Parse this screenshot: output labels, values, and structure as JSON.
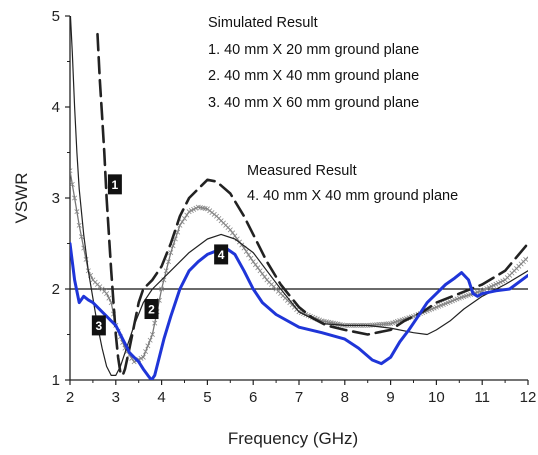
{
  "chart_data": {
    "type": "line",
    "xlabel": "Frequency (GHz)",
    "ylabel": "VSWR",
    "xlim": [
      2,
      12
    ],
    "ylim": [
      1,
      5
    ],
    "x_ticks": [
      "2",
      "3",
      "4",
      "5",
      "6",
      "7",
      "8",
      "9",
      "10",
      "11",
      "12"
    ],
    "y_ticks": [
      "1",
      "2",
      "3",
      "4",
      "5"
    ],
    "reference_line": {
      "y": 2
    },
    "annotations": {
      "simulated_title": "Simulated Result",
      "simulated_items": [
        "1. 40 mm X 20 mm ground plane",
        "2. 40 mm X 40 mm ground plane",
        "3. 40 mm X 60 mm ground plane"
      ],
      "measured_title": "Measured Result",
      "measured_items": [
        "4. 40 mm X 40 mm ground plane"
      ]
    },
    "series": [
      {
        "label": "1",
        "color": "#222222",
        "style": "dashed-long",
        "label_pos": [
          2.98,
          3.15
        ],
        "points": [
          [
            2.6,
            4.8
          ],
          [
            2.65,
            4.3
          ],
          [
            2.7,
            3.9
          ],
          [
            2.75,
            3.5
          ],
          [
            2.8,
            3.0
          ],
          [
            2.85,
            2.6
          ],
          [
            2.9,
            2.2
          ],
          [
            2.95,
            1.85
          ],
          [
            3.0,
            1.5
          ],
          [
            3.05,
            1.25
          ],
          [
            3.1,
            1.08
          ],
          [
            3.15,
            1.05
          ],
          [
            3.2,
            1.12
          ],
          [
            3.3,
            1.35
          ],
          [
            3.4,
            1.6
          ],
          [
            3.5,
            1.85
          ],
          [
            3.6,
            2.0
          ],
          [
            3.8,
            2.1
          ],
          [
            4.0,
            2.25
          ],
          [
            4.2,
            2.5
          ],
          [
            4.4,
            2.8
          ],
          [
            4.6,
            3.0
          ],
          [
            4.8,
            3.1
          ],
          [
            5.0,
            3.2
          ],
          [
            5.2,
            3.18
          ],
          [
            5.5,
            3.05
          ],
          [
            5.8,
            2.8
          ],
          [
            6.0,
            2.6
          ],
          [
            6.3,
            2.3
          ],
          [
            6.6,
            2.05
          ],
          [
            7.0,
            1.8
          ],
          [
            7.3,
            1.68
          ],
          [
            7.6,
            1.6
          ],
          [
            8.0,
            1.55
          ],
          [
            8.5,
            1.5
          ],
          [
            9.0,
            1.55
          ],
          [
            9.3,
            1.65
          ],
          [
            9.7,
            1.75
          ],
          [
            10.0,
            1.85
          ],
          [
            10.5,
            1.95
          ],
          [
            11.0,
            2.05
          ],
          [
            11.5,
            2.2
          ],
          [
            12.0,
            2.5
          ]
        ]
      },
      {
        "label": "2",
        "color": "#777777",
        "style": "cross-marker",
        "label_pos": [
          3.78,
          1.78
        ],
        "points": [
          [
            2.0,
            3.3
          ],
          [
            2.1,
            3.0
          ],
          [
            2.2,
            2.7
          ],
          [
            2.3,
            2.45
          ],
          [
            2.4,
            2.2
          ],
          [
            2.5,
            2.1
          ],
          [
            2.6,
            2.05
          ],
          [
            2.7,
            2.0
          ],
          [
            2.8,
            1.95
          ],
          [
            2.9,
            1.85
          ],
          [
            3.0,
            1.6
          ],
          [
            3.2,
            1.35
          ],
          [
            3.4,
            1.2
          ],
          [
            3.6,
            1.25
          ],
          [
            3.8,
            1.5
          ],
          [
            4.0,
            2.0
          ],
          [
            4.2,
            2.4
          ],
          [
            4.4,
            2.7
          ],
          [
            4.6,
            2.85
          ],
          [
            4.8,
            2.9
          ],
          [
            5.0,
            2.88
          ],
          [
            5.2,
            2.8
          ],
          [
            5.5,
            2.65
          ],
          [
            5.8,
            2.45
          ],
          [
            6.0,
            2.3
          ],
          [
            6.3,
            2.1
          ],
          [
            6.6,
            1.95
          ],
          [
            7.0,
            1.75
          ],
          [
            7.5,
            1.65
          ],
          [
            8.0,
            1.6
          ],
          [
            8.5,
            1.6
          ],
          [
            9.0,
            1.62
          ],
          [
            9.5,
            1.7
          ],
          [
            10.0,
            1.8
          ],
          [
            10.5,
            1.9
          ],
          [
            11.0,
            1.98
          ],
          [
            11.5,
            2.1
          ],
          [
            12.0,
            2.35
          ]
        ]
      },
      {
        "label": "3",
        "color": "#222222",
        "style": "solid-thin",
        "label_pos": [
          2.63,
          1.6
        ],
        "points": [
          [
            2.0,
            5.1
          ],
          [
            2.05,
            4.6
          ],
          [
            2.1,
            4.0
          ],
          [
            2.15,
            3.5
          ],
          [
            2.2,
            3.1
          ],
          [
            2.3,
            2.6
          ],
          [
            2.4,
            2.2
          ],
          [
            2.5,
            1.9
          ],
          [
            2.6,
            1.6
          ],
          [
            2.7,
            1.35
          ],
          [
            2.8,
            1.15
          ],
          [
            2.9,
            1.05
          ],
          [
            3.0,
            1.05
          ],
          [
            3.1,
            1.15
          ],
          [
            3.2,
            1.3
          ],
          [
            3.4,
            1.6
          ],
          [
            3.6,
            1.85
          ],
          [
            3.8,
            2.0
          ],
          [
            4.0,
            2.1
          ],
          [
            4.3,
            2.25
          ],
          [
            4.6,
            2.4
          ],
          [
            5.0,
            2.55
          ],
          [
            5.3,
            2.6
          ],
          [
            5.6,
            2.55
          ],
          [
            6.0,
            2.4
          ],
          [
            6.3,
            2.2
          ],
          [
            6.6,
            2.0
          ],
          [
            7.0,
            1.75
          ],
          [
            7.5,
            1.62
          ],
          [
            8.0,
            1.6
          ],
          [
            8.5,
            1.6
          ],
          [
            9.0,
            1.57
          ],
          [
            9.5,
            1.52
          ],
          [
            9.8,
            1.5
          ],
          [
            10.0,
            1.55
          ],
          [
            10.3,
            1.65
          ],
          [
            10.6,
            1.78
          ],
          [
            11.0,
            1.92
          ],
          [
            11.5,
            2.05
          ],
          [
            12.0,
            2.2
          ]
        ]
      },
      {
        "label": "4",
        "color": "#1f35d8",
        "style": "solid-thick",
        "label_pos": [
          5.3,
          2.38
        ],
        "points": [
          [
            2.0,
            2.5
          ],
          [
            2.05,
            2.3
          ],
          [
            2.1,
            2.1
          ],
          [
            2.2,
            1.85
          ],
          [
            2.3,
            1.92
          ],
          [
            2.4,
            1.88
          ],
          [
            2.5,
            1.85
          ],
          [
            2.6,
            1.8
          ],
          [
            2.7,
            1.75
          ],
          [
            2.8,
            1.7
          ],
          [
            2.9,
            1.65
          ],
          [
            3.0,
            1.6
          ],
          [
            3.1,
            1.5
          ],
          [
            3.2,
            1.4
          ],
          [
            3.3,
            1.3
          ],
          [
            3.4,
            1.25
          ],
          [
            3.5,
            1.2
          ],
          [
            3.6,
            1.12
          ],
          [
            3.7,
            1.05
          ],
          [
            3.78,
            1.0
          ],
          [
            3.85,
            1.05
          ],
          [
            3.95,
            1.25
          ],
          [
            4.05,
            1.45
          ],
          [
            4.2,
            1.7
          ],
          [
            4.4,
            2.0
          ],
          [
            4.6,
            2.2
          ],
          [
            4.8,
            2.3
          ],
          [
            5.0,
            2.38
          ],
          [
            5.2,
            2.42
          ],
          [
            5.4,
            2.45
          ],
          [
            5.6,
            2.38
          ],
          [
            5.8,
            2.2
          ],
          [
            6.0,
            2.0
          ],
          [
            6.2,
            1.85
          ],
          [
            6.5,
            1.72
          ],
          [
            7.0,
            1.58
          ],
          [
            7.5,
            1.52
          ],
          [
            8.0,
            1.45
          ],
          [
            8.3,
            1.35
          ],
          [
            8.6,
            1.22
          ],
          [
            8.8,
            1.18
          ],
          [
            9.0,
            1.25
          ],
          [
            9.2,
            1.42
          ],
          [
            9.4,
            1.55
          ],
          [
            9.6,
            1.7
          ],
          [
            9.8,
            1.85
          ],
          [
            10.0,
            1.95
          ],
          [
            10.2,
            2.05
          ],
          [
            10.4,
            2.12
          ],
          [
            10.55,
            2.18
          ],
          [
            10.7,
            2.1
          ],
          [
            10.8,
            1.95
          ],
          [
            10.9,
            1.92
          ],
          [
            11.0,
            1.95
          ],
          [
            11.3,
            1.98
          ],
          [
            11.6,
            2.0
          ],
          [
            12.0,
            2.15
          ]
        ]
      }
    ]
  }
}
